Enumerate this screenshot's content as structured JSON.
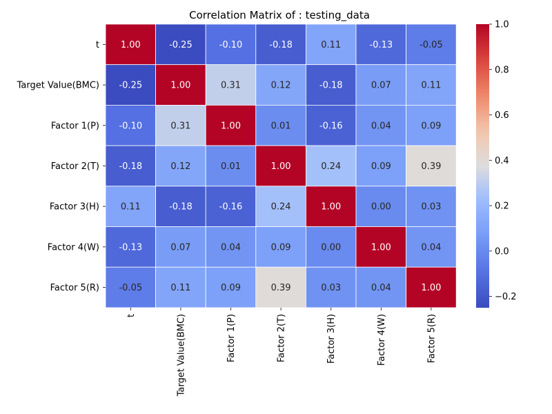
{
  "chart_data": {
    "type": "heatmap",
    "title": "Correlation Matrix of  : testing_data",
    "xlabel": "",
    "ylabel": "",
    "labels": [
      "t",
      "Target Value(BMC)",
      "Factor 1(P)",
      "Factor 2(T)",
      "Factor 3(H)",
      "Factor 4(W)",
      "Factor 5(R)"
    ],
    "matrix": [
      [
        1.0,
        -0.25,
        -0.1,
        -0.18,
        0.11,
        -0.13,
        -0.05
      ],
      [
        -0.25,
        1.0,
        0.31,
        0.12,
        -0.18,
        0.07,
        0.11
      ],
      [
        -0.1,
        0.31,
        1.0,
        0.01,
        -0.16,
        0.04,
        0.09
      ],
      [
        -0.18,
        0.12,
        0.01,
        1.0,
        0.24,
        0.09,
        0.39
      ],
      [
        0.11,
        -0.18,
        -0.16,
        0.24,
        1.0,
        0.0,
        0.03
      ],
      [
        -0.13,
        0.07,
        0.04,
        0.09,
        0.0,
        1.0,
        0.04
      ],
      [
        -0.05,
        0.11,
        0.09,
        0.39,
        0.03,
        0.04,
        1.0
      ]
    ],
    "colormap": "coolwarm",
    "vmin": -0.25,
    "vmax": 1.0,
    "colorbar_ticks": [
      -0.2,
      0.0,
      0.2,
      0.4,
      0.6,
      0.8,
      1.0
    ],
    "colorbar_tick_labels": [
      "−0.2",
      "0.0",
      "0.2",
      "0.4",
      "0.6",
      "0.8",
      "1.0"
    ],
    "cell_line_color": "#ffffff"
  }
}
